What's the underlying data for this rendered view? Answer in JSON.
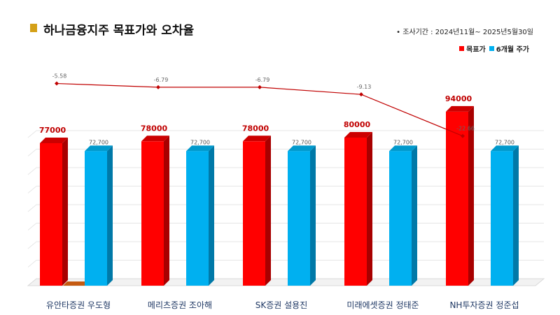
{
  "title": "하나금융지주 목표가와 오차율",
  "period": "• 조사기간 : 2024년11월~ 2025년5월30일",
  "colors": {
    "target": "#ff0000",
    "price": "#00b0f0",
    "line": "#c00000",
    "title_mark": "#d4a017"
  },
  "chart_data": {
    "type": "bar",
    "categories": [
      "유안타증권 우도형",
      "메리츠증권 조아해",
      "SK증권 설용진",
      "미래에셋증권 정태준",
      "NH투자증권 정준섭"
    ],
    "series": [
      {
        "name": "목표가",
        "values": [
          77000,
          78000,
          78000,
          80000,
          94000
        ],
        "labels": [
          "77000",
          "78000",
          "78000",
          "80000",
          "94000"
        ]
      },
      {
        "name": "6개월 주가",
        "values": [
          72700,
          72700,
          72700,
          72700,
          72700
        ],
        "labels": [
          "72,700",
          "72,700",
          "72,700",
          "72,700",
          "72,700"
        ]
      }
    ],
    "error_rate": {
      "values": [
        -5.58,
        -6.79,
        -6.79,
        -9.13,
        -22.66
      ],
      "labels": [
        "-5.58",
        "-6.79",
        "-6.79",
        "-9.13",
        "-22.66"
      ]
    },
    "ylim": [
      0,
      100000
    ],
    "grid": true,
    "legend_position": "top-right"
  }
}
